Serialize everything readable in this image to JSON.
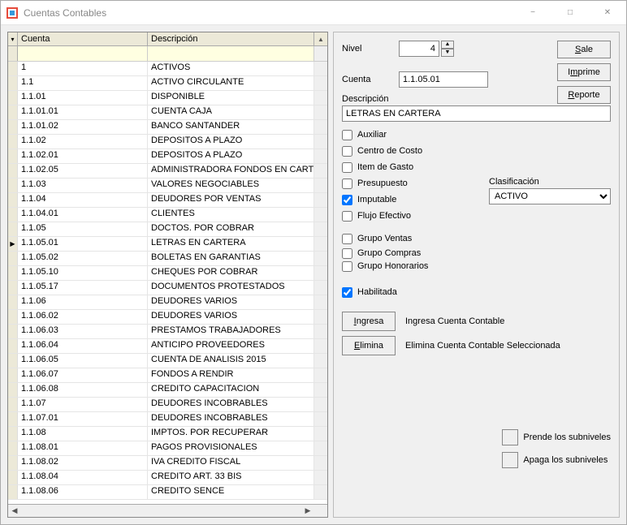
{
  "window": {
    "title": "Cuentas Contables"
  },
  "grid": {
    "columns": {
      "cuenta": "Cuenta",
      "descripcion": "Descripción"
    },
    "rows": [
      {
        "c": "1",
        "d": "ACTIVOS"
      },
      {
        "c": "1.1",
        "d": "ACTIVO CIRCULANTE"
      },
      {
        "c": "1.1.01",
        "d": "DISPONIBLE"
      },
      {
        "c": "1.1.01.01",
        "d": "CUENTA CAJA"
      },
      {
        "c": "1.1.01.02",
        "d": "BANCO SANTANDER"
      },
      {
        "c": "1.1.02",
        "d": "DEPOSITOS A PLAZO"
      },
      {
        "c": "1.1.02.01",
        "d": "DEPOSITOS A PLAZO"
      },
      {
        "c": "1.1.02.05",
        "d": "ADMINISTRADORA FONDOS EN CARTER"
      },
      {
        "c": "1.1.03",
        "d": "VALORES NEGOCIABLES"
      },
      {
        "c": "1.1.04",
        "d": "DEUDORES POR VENTAS"
      },
      {
        "c": "1.1.04.01",
        "d": "CLIENTES"
      },
      {
        "c": "1.1.05",
        "d": "DOCTOS. POR COBRAR"
      },
      {
        "c": "1.1.05.01",
        "d": "LETRAS EN CARTERA",
        "sel": true
      },
      {
        "c": "1.1.05.02",
        "d": "BOLETAS EN GARANTIAS"
      },
      {
        "c": "1.1.05.10",
        "d": "CHEQUES POR COBRAR"
      },
      {
        "c": "1.1.05.17",
        "d": "DOCUMENTOS PROTESTADOS"
      },
      {
        "c": "1.1.06",
        "d": "DEUDORES VARIOS"
      },
      {
        "c": "1.1.06.02",
        "d": "DEUDORES VARIOS"
      },
      {
        "c": "1.1.06.03",
        "d": "PRESTAMOS TRABAJADORES"
      },
      {
        "c": "1.1.06.04",
        "d": "ANTICIPO PROVEEDORES"
      },
      {
        "c": "1.1.06.05",
        "d": "CUENTA DE ANALISIS 2015"
      },
      {
        "c": "1.1.06.07",
        "d": "FONDOS A RENDIR"
      },
      {
        "c": "1.1.06.08",
        "d": "CREDITO CAPACITACION"
      },
      {
        "c": "1.1.07",
        "d": "DEUDORES INCOBRABLES"
      },
      {
        "c": "1.1.07.01",
        "d": "DEUDORES INCOBRABLES"
      },
      {
        "c": "1.1.08",
        "d": "IMPTOS. POR RECUPERAR"
      },
      {
        "c": "1.1.08.01",
        "d": "PAGOS PROVISIONALES"
      },
      {
        "c": "1.1.08.02",
        "d": "IVA CREDITO FISCAL"
      },
      {
        "c": "1.1.08.04",
        "d": "CREDITO ART. 33 BIS"
      },
      {
        "c": "1.1.08.06",
        "d": "CREDITO SENCE"
      }
    ]
  },
  "form": {
    "labels": {
      "nivel": "Nivel",
      "cuenta": "Cuenta",
      "descripcion": "Descripción",
      "clasificacion": "Clasificación"
    },
    "nivel": "4",
    "cuenta": "1.1.05.01",
    "descripcion": "LETRAS EN CARTERA",
    "clasificacion": "ACTIVO",
    "checks": {
      "auxiliar": "Auxiliar",
      "centro_costo": "Centro de Costo",
      "item_gasto": "Item de Gasto",
      "presupuesto": "Presupuesto",
      "imputable": "Imputable",
      "flujo_efectivo": "Flujo Efectivo",
      "grupo_ventas": "Grupo Ventas",
      "grupo_compras": "Grupo Compras",
      "grupo_honorarios": "Grupo Honorarios",
      "habilitada": "Habilitada"
    },
    "sublabels": {
      "prende": "Prende los subniveles",
      "apaga": "Apaga los subniveles"
    },
    "actions": {
      "ingresa": "Ingresa",
      "ingresa_desc": "Ingresa Cuenta Contable",
      "elimina": "Elimina",
      "elimina_desc": "Elimina Cuenta Contable Seleccionada"
    },
    "buttons": {
      "sale": "Sale",
      "imprime": "Imprime",
      "reporte": "Reporte"
    }
  }
}
